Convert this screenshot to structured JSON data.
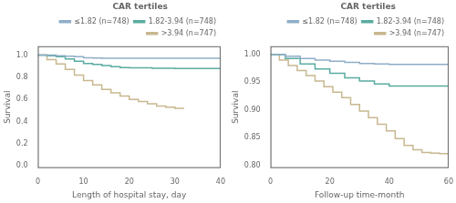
{
  "chart_data": [
    {
      "type": "line",
      "line_style": "step",
      "xlabel": "Length of hospital stay, day",
      "ylabel": "Survival",
      "xlim": [
        0,
        40
      ],
      "ylim": [
        -0.02,
        1.08
      ],
      "xticks": [
        0,
        10,
        20,
        30,
        40
      ],
      "yticks": [
        {
          "value": 0.0,
          "label": "0.0"
        },
        {
          "value": 0.2,
          "label": "0.2"
        },
        {
          "value": 0.4,
          "label": "0.4"
        },
        {
          "value": 0.6,
          "label": "0.6"
        },
        {
          "value": 0.8,
          "label": "0.8"
        },
        {
          "value": 1.0,
          "label": "1.0"
        }
      ],
      "grid": false,
      "legend": "upper right",
      "legend_title": "CAR tertiles",
      "series": [
        {
          "name": "≤1.82 (n=748)",
          "color": "#8faec8",
          "x": [
            0,
            2,
            4,
            6,
            8,
            10,
            12,
            14,
            16,
            18,
            20,
            25,
            30,
            35,
            40
          ],
          "values": [
            1.0,
            1.0,
            0.995,
            0.99,
            0.985,
            0.975,
            0.973,
            0.972,
            0.972,
            0.972,
            0.972,
            0.972,
            0.972,
            0.972,
            0.972
          ]
        },
        {
          "name": "1.82-3.94 (n=748)",
          "color": "#5aaca0",
          "x": [
            0,
            2,
            4,
            6,
            8,
            10,
            12,
            14,
            16,
            18,
            20,
            25,
            30,
            35,
            40
          ],
          "values": [
            1.0,
            0.995,
            0.985,
            0.965,
            0.945,
            0.925,
            0.915,
            0.905,
            0.895,
            0.888,
            0.885,
            0.882,
            0.88,
            0.88,
            0.88
          ]
        },
        {
          "name": ">3.94 (n=747)",
          "color": "#c8b890",
          "x": [
            0,
            2,
            4,
            6,
            8,
            10,
            12,
            14,
            16,
            18,
            20,
            22,
            24,
            26,
            28,
            30,
            32
          ],
          "values": [
            1.0,
            0.96,
            0.92,
            0.87,
            0.82,
            0.77,
            0.73,
            0.69,
            0.66,
            0.63,
            0.6,
            0.58,
            0.56,
            0.54,
            0.53,
            0.52,
            0.52
          ]
        }
      ]
    },
    {
      "type": "line",
      "line_style": "step",
      "xlabel": "Follow-up time-month",
      "ylabel": "Survival",
      "xlim": [
        0,
        60
      ],
      "ylim": [
        0.795,
        1.015
      ],
      "xticks": [
        0,
        20,
        40,
        60
      ],
      "yticks": [
        {
          "value": 0.8,
          "label": "0.80"
        },
        {
          "value": 0.85,
          "label": "0.85"
        },
        {
          "value": 0.9,
          "label": "0.90"
        },
        {
          "value": 0.95,
          "label": "0.95"
        },
        {
          "value": 1.0,
          "label": "1.00"
        }
      ],
      "grid": false,
      "legend": "upper right",
      "legend_title": "CAR tertiles",
      "series": [
        {
          "name": "≤1.82 (n=748)",
          "color": "#8faec8",
          "x": [
            0,
            5,
            10,
            15,
            20,
            25,
            30,
            35,
            40,
            45,
            50,
            55,
            60
          ],
          "values": [
            1.0,
            0.997,
            0.993,
            0.99,
            0.988,
            0.986,
            0.984,
            0.983,
            0.982,
            0.982,
            0.982,
            0.982,
            0.982
          ]
        },
        {
          "name": "1.82-3.94 (n=748)",
          "color": "#5aaca0",
          "x": [
            0,
            5,
            10,
            15,
            20,
            25,
            30,
            35,
            40,
            45,
            50,
            55,
            60
          ],
          "values": [
            1.0,
            0.993,
            0.983,
            0.974,
            0.966,
            0.958,
            0.952,
            0.947,
            0.943,
            0.943,
            0.943,
            0.943,
            0.943
          ]
        },
        {
          "name": ">3.94 (n=747)",
          "color": "#c8b890",
          "x": [
            0,
            3,
            6,
            9,
            12,
            15,
            18,
            21,
            24,
            27,
            30,
            33,
            36,
            39,
            42,
            45,
            48,
            51,
            54,
            57,
            60
          ],
          "values": [
            1.0,
            0.99,
            0.98,
            0.971,
            0.962,
            0.952,
            0.942,
            0.932,
            0.922,
            0.91,
            0.898,
            0.886,
            0.874,
            0.862,
            0.848,
            0.836,
            0.828,
            0.823,
            0.822,
            0.821,
            0.82
          ]
        }
      ]
    }
  ]
}
